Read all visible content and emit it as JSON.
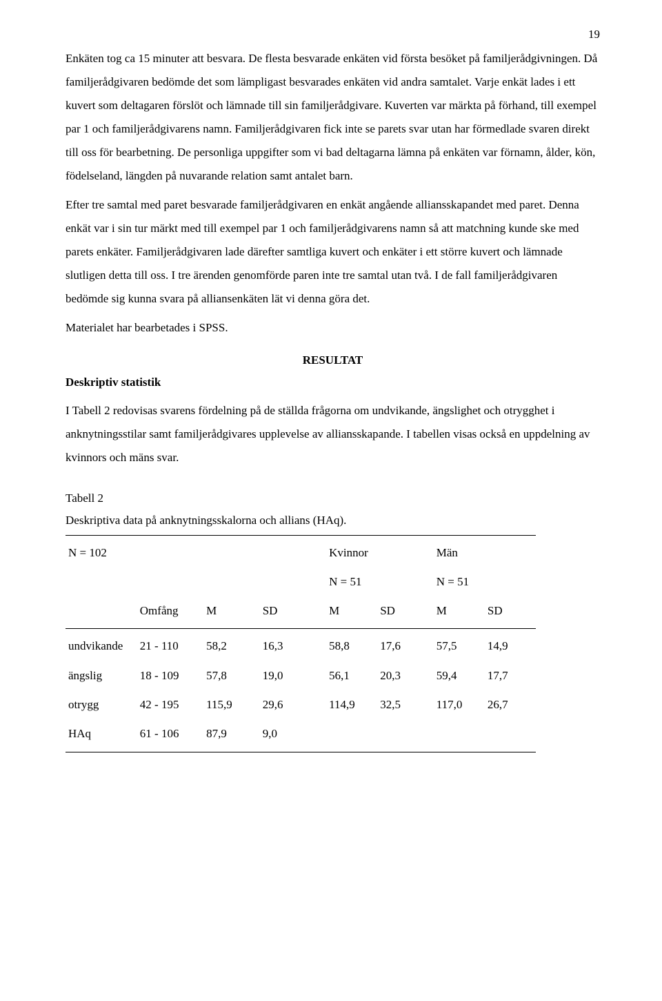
{
  "page_number": "19",
  "paragraphs": {
    "p1": "Enkäten tog ca 15 minuter att besvara. De flesta besvarade enkäten vid första besöket på familjerådgivningen. Då familjerådgivaren bedömde det som lämpligast besvarades enkäten vid andra samtalet. Varje enkät lades i ett kuvert som deltagaren förslöt och lämnade till sin familjerådgivare. Kuverten var märkta på förhand, till exempel par 1 och familjerådgivarens namn. Familjerådgivaren fick inte se parets svar utan har förmedlade svaren direkt till oss för bearbetning. De personliga uppgifter som vi bad deltagarna lämna på enkäten var förnamn, ålder, kön, födelseland, längden på nuvarande relation samt antalet barn.",
    "p2": "Efter tre samtal med paret besvarade familjerådgivaren en enkät angående alliansskapandet med paret. Denna enkät var i sin tur märkt med till exempel par 1 och familjerådgivarens namn så att matchning kunde ske med parets enkäter. Familjerådgivaren lade därefter samtliga kuvert och enkäter i ett större kuvert och lämnade slutligen detta till oss. I tre ärenden genomförde paren inte tre samtal utan två. I de fall familjerådgivaren bedömde sig kunna svara på alliansenkäten lät vi denna göra det.",
    "p3": "Materialet har bearbetades i SPSS.",
    "p4": "I Tabell 2 redovisas svarens fördelning på de ställda frågorna om undvikande, ängslighet och otrygghet i anknytningsstilar samt familjerådgivares upplevelse av alliansskapande. I tabellen visas också en uppdelning av kvinnors och mäns svar."
  },
  "headings": {
    "resultat": "RESULTAT",
    "deskriptiv": "Deskriptiv statistik"
  },
  "table": {
    "label": "Tabell 2",
    "caption": "Deskriptiva data på anknytningsskalorna och allians (HAq).",
    "n_total": "N = 102",
    "groups": {
      "women_label": "Kvinnor",
      "women_n": "N = 51",
      "men_label": "Män",
      "men_n": "N = 51"
    },
    "col_headers": {
      "range": "Omfång",
      "m": "M",
      "sd": "SD"
    },
    "rows": [
      {
        "label": "undvikande",
        "range": "21 - 110",
        "m": "58,2",
        "sd": "16,3",
        "wm": "58,8",
        "wsd": "17,6",
        "mm": "57,5",
        "msd": "14,9"
      },
      {
        "label": "ängslig",
        "range": "18 - 109",
        "m": "57,8",
        "sd": "19,0",
        "wm": "56,1",
        "wsd": "20,3",
        "mm": "59,4",
        "msd": "17,7"
      },
      {
        "label": "otrygg",
        "range": "42 - 195",
        "m": "115,9",
        "sd": "29,6",
        "wm": "114,9",
        "wsd": "32,5",
        "mm": "117,0",
        "msd": "26,7"
      },
      {
        "label": "HAq",
        "range": "61 - 106",
        "m": "87,9",
        "sd": "9,0",
        "wm": "",
        "wsd": "",
        "mm": "",
        "msd": ""
      }
    ]
  }
}
